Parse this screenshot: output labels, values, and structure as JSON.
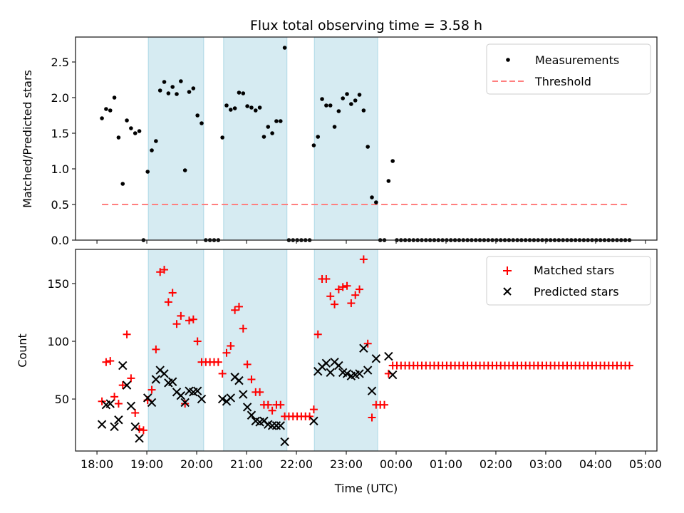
{
  "chart_data": [
    {
      "type": "scatter",
      "title": "Flux total observing time = 3.58 h",
      "xlabel": "",
      "ylabel": "Matched/Predicted stars",
      "xlim_hours": [
        17.57,
        29.23
      ],
      "ylim": [
        0,
        2.85
      ],
      "yticks": [
        0.0,
        0.5,
        1.0,
        1.5,
        2.0,
        2.5
      ],
      "ytick_labels": [
        "0.0",
        "0.5",
        "1.0",
        "1.5",
        "2.0",
        "2.5"
      ],
      "legend_position": "top-right",
      "shaded_intervals_hours": [
        [
          19.03,
          20.14
        ],
        [
          20.54,
          21.81
        ],
        [
          22.36,
          23.63
        ]
      ],
      "shade_color": "#add8e6",
      "series": [
        {
          "name": "Measurements",
          "marker": "dot",
          "color": "#000000",
          "x_start_hours": 18.1,
          "x_step_hours": 0.0833,
          "values": [
            1.71,
            1.84,
            1.82,
            2.0,
            1.44,
            0.79,
            1.68,
            1.57,
            1.5,
            1.53,
            0.0,
            0.96,
            1.26,
            1.39,
            2.1,
            2.22,
            2.06,
            2.15,
            2.05,
            2.23,
            0.98,
            2.08,
            2.13,
            1.75,
            1.64,
            0,
            0,
            0,
            0,
            1.44,
            1.89,
            1.83,
            1.85,
            2.07,
            2.06,
            1.88,
            1.86,
            1.82,
            1.86,
            1.45,
            1.59,
            1.5,
            1.67,
            1.67,
            2.7,
            0,
            0,
            0,
            0,
            0,
            0,
            1.33,
            1.45,
            1.98,
            1.89,
            1.89,
            1.59,
            1.81,
            1.99,
            2.05,
            1.91,
            1.96,
            2.04,
            1.82,
            1.31,
            0.6,
            0.53,
            0,
            0,
            0.83,
            1.11,
            0,
            0,
            0,
            0,
            0,
            0,
            0,
            0,
            0,
            0,
            0,
            0,
            0,
            0,
            0,
            0,
            0,
            0,
            0,
            0,
            0,
            0,
            0,
            0,
            0,
            0,
            0,
            0,
            0,
            0,
            0,
            0,
            0,
            0,
            0,
            0,
            0,
            0,
            0,
            0,
            0,
            0,
            0,
            0,
            0,
            0,
            0,
            0,
            0,
            0,
            0,
            0,
            0,
            0,
            0,
            0,
            0
          ]
        },
        {
          "name": "Threshold",
          "marker": "dashed-line",
          "color": "#ff7f7f",
          "value": 0.5,
          "x_range_hours": [
            18.1,
            28.7
          ]
        }
      ]
    },
    {
      "type": "scatter",
      "xlabel": "Time (UTC)",
      "ylabel": "Count",
      "xlim_hours": [
        17.57,
        29.23
      ],
      "ylim": [
        5,
        179.6
      ],
      "yticks": [
        50,
        100,
        150
      ],
      "ytick_labels": [
        "50",
        "100",
        "150"
      ],
      "xticks_hours": [
        18,
        19,
        20,
        21,
        22,
        23,
        24,
        25,
        26,
        27,
        28,
        29
      ],
      "xtick_labels": [
        "18:00",
        "19:00",
        "20:00",
        "21:00",
        "22:00",
        "23:00",
        "00:00",
        "01:00",
        "02:00",
        "03:00",
        "04:00",
        "05:00"
      ],
      "legend_position": "top-right",
      "shaded_intervals_hours": [
        [
          19.03,
          20.14
        ],
        [
          20.54,
          21.81
        ],
        [
          22.36,
          23.63
        ]
      ],
      "series": [
        {
          "name": "Matched stars",
          "marker": "plus",
          "color": "#ff0000",
          "x_start_hours": 18.1,
          "x_step_hours": 0.0833,
          "values": [
            48,
            82,
            83,
            52,
            46,
            62,
            106,
            68,
            38,
            24,
            23,
            49,
            58,
            93,
            160,
            162,
            134,
            142,
            115,
            122,
            46,
            118,
            119,
            100,
            82,
            82,
            82,
            82,
            82,
            72,
            90,
            96,
            127,
            130,
            111,
            80,
            67,
            56,
            56,
            45,
            45,
            40,
            45,
            45,
            35,
            35,
            35,
            35,
            35,
            35,
            35,
            41,
            106,
            154,
            154,
            139,
            132,
            145,
            147,
            148,
            133,
            140,
            145,
            171,
            98,
            34,
            45,
            45,
            45,
            72,
            79,
            79,
            79,
            79,
            79,
            79,
            79,
            79,
            79,
            79,
            79,
            79,
            79,
            79,
            79,
            79,
            79,
            79,
            79,
            79,
            79,
            79,
            79,
            79,
            79,
            79,
            79,
            79,
            79,
            79,
            79,
            79,
            79,
            79,
            79,
            79,
            79,
            79,
            79,
            79,
            79,
            79,
            79,
            79,
            79,
            79,
            79,
            79,
            79,
            79,
            79,
            79,
            79,
            79,
            79,
            79,
            79,
            79
          ]
        },
        {
          "name": "Predicted stars",
          "marker": "x",
          "color": "#000000",
          "x_start_hours": 18.1,
          "x_step_hours": 0.0833,
          "values": [
            28,
            45,
            46,
            26,
            32,
            79,
            62,
            44,
            26,
            16,
            null,
            51,
            47,
            67,
            75,
            72,
            64,
            65,
            56,
            53,
            47,
            57,
            56,
            57,
            50,
            null,
            null,
            null,
            null,
            50,
            48,
            51,
            69,
            66,
            54,
            43,
            36,
            31,
            30,
            31,
            28,
            27,
            27,
            27,
            13,
            null,
            null,
            null,
            null,
            null,
            null,
            31,
            74,
            78,
            81,
            73,
            82,
            79,
            73,
            72,
            70,
            71,
            72,
            94,
            75,
            57,
            85,
            null,
            null,
            87,
            71,
            null,
            null,
            null,
            null,
            null,
            null,
            null,
            null,
            null,
            null,
            null,
            null,
            null,
            null,
            null,
            null,
            null,
            null,
            null,
            null,
            null,
            null,
            null,
            null,
            null,
            null,
            null,
            null,
            null,
            null,
            null,
            null,
            null,
            null,
            null,
            null,
            null,
            null,
            null,
            null,
            null,
            null,
            null,
            null,
            null,
            null,
            null,
            null,
            null,
            null,
            null,
            null,
            null,
            null,
            null,
            null,
            null
          ]
        }
      ]
    }
  ]
}
